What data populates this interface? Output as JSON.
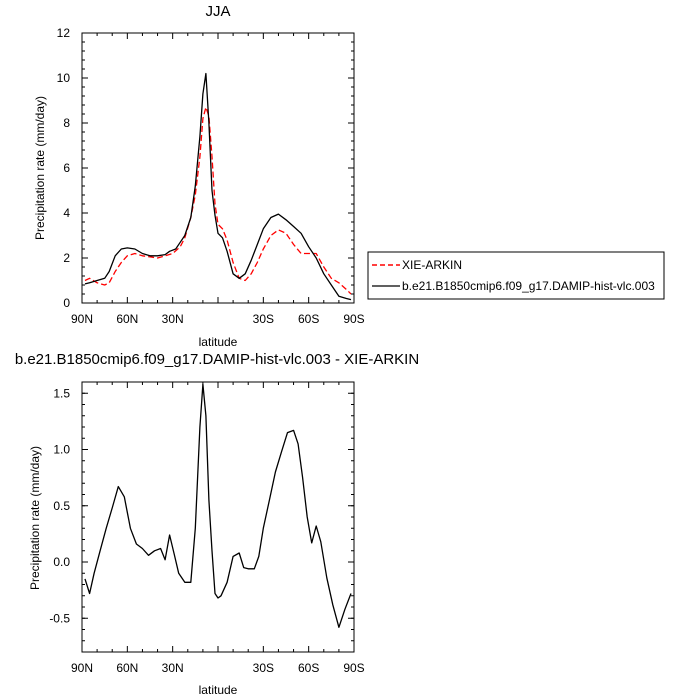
{
  "chart_data": [
    {
      "type": "line",
      "title": "JJA",
      "xlabel": "latitude",
      "ylabel": "Precipitation rate (mm/day)",
      "xlim": [
        90,
        -90
      ],
      "ylim": [
        0,
        12
      ],
      "x_ticks": [
        90,
        60,
        30,
        0,
        -30,
        -60,
        -90
      ],
      "x_tick_labels": [
        "90N",
        "60N",
        "30N",
        "",
        "30S",
        "60S",
        "90S"
      ],
      "y_ticks": [
        0,
        2,
        4,
        6,
        8,
        10,
        12
      ],
      "y_tick_labels": [
        "0",
        "2",
        "4",
        "6",
        "8",
        "10",
        "12"
      ],
      "grid": false,
      "legend_position": "right",
      "series": [
        {
          "name": "XIE-ARKIN",
          "color": "#ff0000",
          "dash": "dashed",
          "x": [
            88,
            85,
            80,
            75,
            72,
            68,
            64,
            60,
            55,
            50,
            45,
            40,
            35,
            30,
            25,
            22,
            18,
            15,
            12,
            10,
            8,
            6,
            4,
            2,
            0,
            -3,
            -6,
            -10,
            -14,
            -18,
            -22,
            -26,
            -30,
            -35,
            -40,
            -45,
            -50,
            -55,
            -60,
            -65,
            -70,
            -75,
            -80,
            -85,
            -88
          ],
          "y": [
            1.0,
            1.1,
            0.9,
            0.8,
            0.9,
            1.4,
            1.8,
            2.1,
            2.2,
            2.1,
            2.05,
            2.0,
            2.1,
            2.2,
            2.5,
            2.9,
            3.8,
            4.8,
            6.5,
            8.2,
            8.7,
            8.3,
            6.5,
            4.4,
            3.5,
            3.3,
            2.8,
            1.8,
            1.1,
            1.0,
            1.3,
            1.8,
            2.4,
            3.0,
            3.25,
            3.1,
            2.6,
            2.2,
            2.2,
            2.2,
            1.6,
            1.1,
            0.9,
            0.6,
            0.4
          ]
        },
        {
          "name": "b.e21.B1850cmip6.f09_g17.DAMIP-hist-vlc.003",
          "color": "#000000",
          "dash": "solid",
          "x": [
            88,
            85,
            80,
            75,
            72,
            68,
            64,
            60,
            55,
            50,
            45,
            40,
            35,
            32,
            28,
            25,
            22,
            18,
            15,
            12,
            10,
            8,
            6,
            4,
            2,
            0,
            -3,
            -6,
            -10,
            -14,
            -18,
            -22,
            -26,
            -30,
            -35,
            -40,
            -45,
            -50,
            -55,
            -60,
            -65,
            -70,
            -75,
            -80,
            -85,
            -88
          ],
          "y": [
            0.85,
            0.9,
            1.0,
            1.1,
            1.4,
            2.1,
            2.4,
            2.45,
            2.4,
            2.2,
            2.1,
            2.1,
            2.15,
            2.3,
            2.4,
            2.7,
            3.0,
            3.8,
            5.2,
            7.4,
            9.3,
            10.2,
            8.0,
            5.0,
            3.9,
            3.1,
            2.9,
            2.3,
            1.3,
            1.1,
            1.3,
            1.9,
            2.6,
            3.3,
            3.8,
            3.95,
            3.7,
            3.4,
            3.1,
            2.5,
            2.0,
            1.3,
            0.8,
            0.3,
            0.2,
            0.15
          ]
        }
      ]
    },
    {
      "type": "line",
      "title": "b.e21.B1850cmip6.f09_g17.DAMIP-hist-vlc.003 - XIE-ARKIN",
      "xlabel": "latitude",
      "ylabel": "Precipitation rate (mm/day)",
      "xlim": [
        90,
        -90
      ],
      "ylim": [
        -0.8,
        1.6
      ],
      "x_ticks": [
        90,
        60,
        30,
        0,
        -30,
        -60,
        -90
      ],
      "x_tick_labels": [
        "90N",
        "60N",
        "30N",
        "",
        "30S",
        "60S",
        "90S"
      ],
      "y_ticks": [
        -0.5,
        0.0,
        0.5,
        1.0,
        1.5
      ],
      "y_tick_labels": [
        "-0.5",
        "0.0",
        "0.5",
        "1.0",
        "1.5"
      ],
      "grid": false,
      "series": [
        {
          "color": "#000000",
          "dash": "solid",
          "x": [
            88,
            85,
            82,
            78,
            74,
            70,
            66,
            62,
            58,
            54,
            50,
            46,
            42,
            38,
            35,
            32,
            29,
            26,
            22,
            18,
            15,
            12,
            10,
            8,
            6,
            4,
            2,
            0,
            -2,
            -6,
            -10,
            -14,
            -17,
            -20,
            -24,
            -27,
            -30,
            -34,
            -38,
            -42,
            -46,
            -50,
            -53,
            -56,
            -59,
            -62,
            -65,
            -68,
            -72,
            -76,
            -80,
            -84,
            -88
          ],
          "y": [
            -0.15,
            -0.28,
            -0.1,
            0.1,
            0.3,
            0.48,
            0.67,
            0.58,
            0.3,
            0.16,
            0.12,
            0.06,
            0.1,
            0.12,
            0.02,
            0.24,
            0.07,
            -0.1,
            -0.18,
            -0.18,
            0.3,
            1.2,
            1.58,
            1.3,
            0.55,
            0.1,
            -0.28,
            -0.32,
            -0.3,
            -0.18,
            0.05,
            0.08,
            -0.05,
            -0.06,
            -0.06,
            0.05,
            0.3,
            0.55,
            0.8,
            0.98,
            1.15,
            1.17,
            1.05,
            0.75,
            0.4,
            0.17,
            0.32,
            0.18,
            -0.14,
            -0.38,
            -0.58,
            -0.42,
            -0.28
          ]
        }
      ]
    }
  ]
}
